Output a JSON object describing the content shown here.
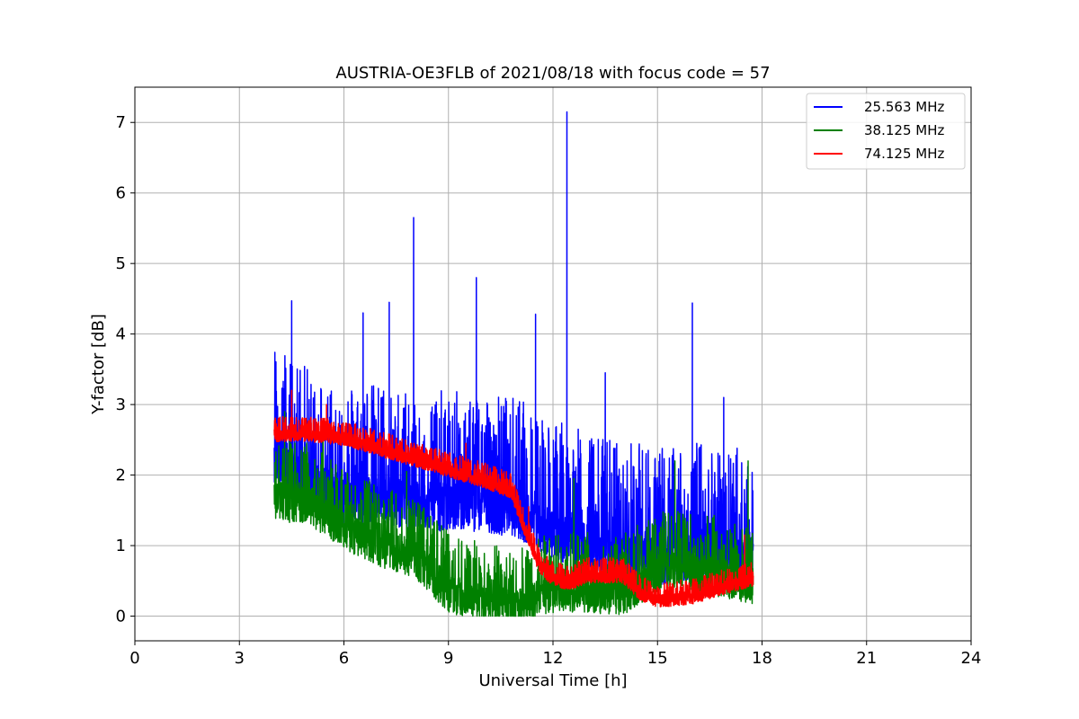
{
  "chart_data": {
    "type": "line",
    "title": "AUSTRIA-OE3FLB of 2021/08/18 with focus code = 57",
    "xlabel": "Universal Time [h]",
    "ylabel": "Y-factor [dB]",
    "xlim": [
      0,
      24
    ],
    "ylim": [
      -0.35,
      7.5
    ],
    "xticks": [
      0,
      3,
      6,
      9,
      12,
      15,
      18,
      21,
      24
    ],
    "yticks": [
      0,
      1,
      2,
      3,
      4,
      5,
      6,
      7
    ],
    "grid": true,
    "legend_position": "top-right",
    "series": [
      {
        "name": "25.563 MHz",
        "color": "#0000ff",
        "baseline": [
          [
            4.0,
            2.6
          ],
          [
            5.0,
            2.2
          ],
          [
            6.0,
            2.0
          ],
          [
            7.0,
            2.0
          ],
          [
            8.0,
            1.9
          ],
          [
            9.0,
            1.9
          ],
          [
            10.0,
            1.9
          ],
          [
            11.0,
            1.8
          ],
          [
            12.0,
            1.5
          ],
          [
            13.0,
            1.3
          ],
          [
            14.0,
            1.2
          ],
          [
            15.0,
            1.1
          ],
          [
            16.0,
            1.2
          ],
          [
            17.0,
            1.1
          ],
          [
            17.75,
            1.1
          ]
        ],
        "spikes": [
          [
            4.5,
            4.47
          ],
          [
            6.55,
            4.3
          ],
          [
            7.3,
            4.45
          ],
          [
            8.0,
            5.65
          ],
          [
            9.8,
            4.8
          ],
          [
            11.5,
            4.28
          ],
          [
            12.4,
            7.15
          ],
          [
            13.5,
            3.45
          ],
          [
            16.0,
            4.44
          ],
          [
            16.9,
            3.1
          ]
        ]
      },
      {
        "name": "38.125 MHz",
        "color": "#008000",
        "baseline": [
          [
            4.0,
            1.9
          ],
          [
            5.0,
            1.85
          ],
          [
            6.0,
            1.5
          ],
          [
            7.0,
            1.25
          ],
          [
            8.0,
            1.1
          ],
          [
            9.0,
            0.6
          ],
          [
            10.0,
            0.45
          ],
          [
            11.0,
            0.4
          ],
          [
            12.0,
            0.6
          ],
          [
            13.0,
            0.6
          ],
          [
            14.0,
            0.55
          ],
          [
            15.0,
            0.9
          ],
          [
            16.0,
            0.9
          ],
          [
            17.0,
            0.8
          ],
          [
            17.75,
            0.7
          ]
        ],
        "spikes": [
          [
            4.3,
            2.9
          ],
          [
            5.4,
            2.8
          ],
          [
            7.8,
            2.05
          ],
          [
            12.6,
            1.95
          ],
          [
            15.5,
            2.2
          ],
          [
            17.6,
            2.2
          ]
        ]
      },
      {
        "name": "74.125 MHz",
        "color": "#ff0000",
        "baseline": [
          [
            4.0,
            2.65
          ],
          [
            5.0,
            2.65
          ],
          [
            6.0,
            2.6
          ],
          [
            7.0,
            2.45
          ],
          [
            8.0,
            2.3
          ],
          [
            9.0,
            2.15
          ],
          [
            10.0,
            2.0
          ],
          [
            10.8,
            1.85
          ],
          [
            11.2,
            1.3
          ],
          [
            11.6,
            0.8
          ],
          [
            12.0,
            0.6
          ],
          [
            12.5,
            0.55
          ],
          [
            13.0,
            0.65
          ],
          [
            14.0,
            0.65
          ],
          [
            14.5,
            0.4
          ],
          [
            15.0,
            0.3
          ],
          [
            16.0,
            0.35
          ],
          [
            17.0,
            0.5
          ],
          [
            17.75,
            0.6
          ]
        ],
        "spikes": [
          [
            4.5,
            3.2
          ],
          [
            5.5,
            3.0
          ],
          [
            9.5,
            2.45
          ],
          [
            11.3,
            1.55
          ],
          [
            17.5,
            1.15
          ]
        ]
      }
    ]
  }
}
